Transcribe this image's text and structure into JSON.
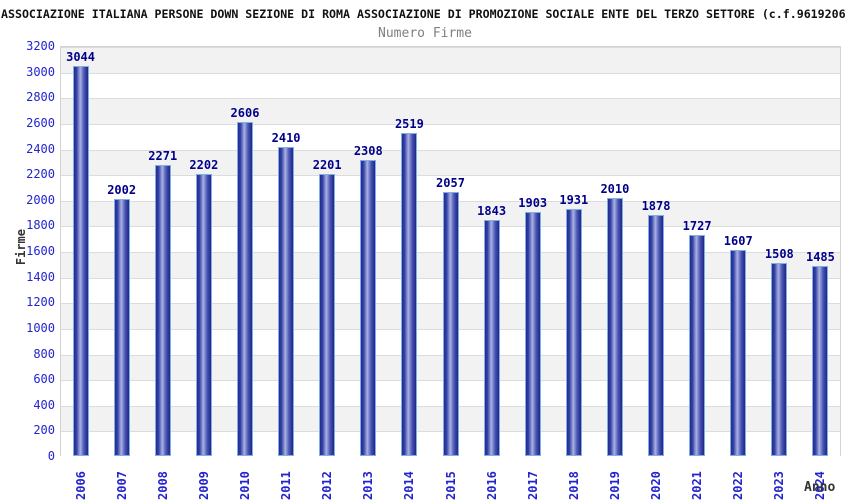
{
  "header": {
    "title": "ASSOCIAZIONE ITALIANA PERSONE DOWN SEZIONE DI ROMA ASSOCIAZIONE DI PROMOZIONE SOCIALE ENTE DEL TERZO SETTORE (c.f.9619206",
    "subtitle": "Numero Firme"
  },
  "chart_data": {
    "type": "bar",
    "title": "Numero Firme",
    "categories": [
      "2006",
      "2007",
      "2008",
      "2009",
      "2010",
      "2011",
      "2012",
      "2013",
      "2014",
      "2015",
      "2016",
      "2017",
      "2018",
      "2019",
      "2020",
      "2021",
      "2022",
      "2023",
      "2024"
    ],
    "values": [
      3044,
      2002,
      2271,
      2202,
      2606,
      2410,
      2201,
      2308,
      2519,
      2057,
      1843,
      1903,
      1931,
      2010,
      1878,
      1727,
      1607,
      1508,
      1485
    ],
    "xlabel": "Anno",
    "ylabel": "Firme",
    "ylim": [
      0,
      3200
    ],
    "ytick_step": 200,
    "grid": true,
    "legend": "none",
    "colors": {
      "bar_dark": "#232b8e",
      "bar_light": "#a9b1e2",
      "bar_border": "#7fb0e3",
      "value_label": "#00008b",
      "axis_tick_label": "#2424cd",
      "band_fill": "#f2f2f2",
      "gridline": "#dcdcdc",
      "title_text": "#111111",
      "subtitle_text": "#808080",
      "axis_title_text": "#333333"
    }
  }
}
